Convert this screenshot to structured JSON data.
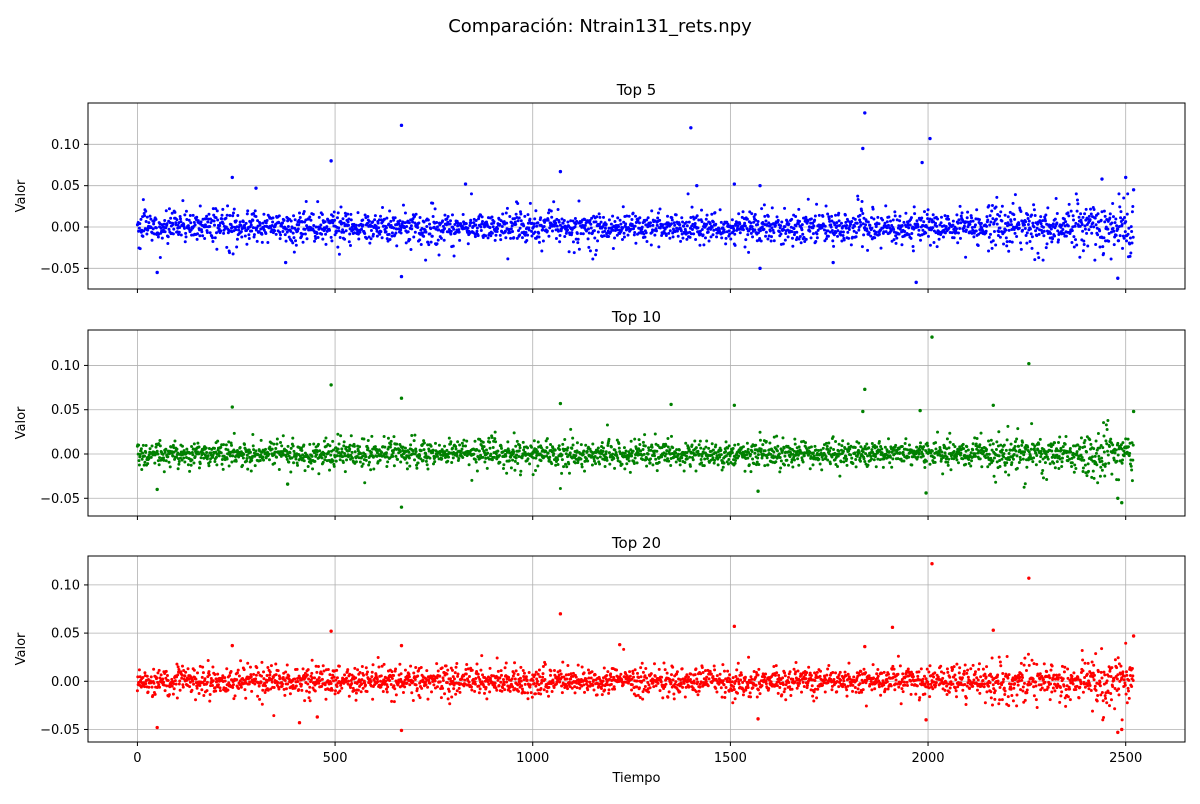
{
  "figure": {
    "suptitle": "Comparación: Ntrain131_rets.npy"
  },
  "chart_data": [
    {
      "type": "scatter",
      "title": "Top 5",
      "ylabel": "Valor",
      "xlabel": "",
      "color": "#0000ff",
      "xlim": [
        -125,
        2650
      ],
      "ylim": [
        -0.075,
        0.15
      ],
      "xticks": [
        0,
        500,
        1000,
        1500,
        2000,
        2500
      ],
      "xtick_labels_visible": false,
      "yticks": [
        -0.05,
        0.0,
        0.05,
        0.1
      ],
      "ytick_labels": [
        "−0.05",
        "0.00",
        "0.05",
        "0.10"
      ],
      "grid": true,
      "n_points": 2520,
      "noise_sigma": 0.011,
      "outliers": [
        {
          "x": 50,
          "y": -0.055
        },
        {
          "x": 240,
          "y": 0.06
        },
        {
          "x": 300,
          "y": 0.047
        },
        {
          "x": 375,
          "y": -0.043
        },
        {
          "x": 490,
          "y": 0.08
        },
        {
          "x": 668,
          "y": 0.123
        },
        {
          "x": 668,
          "y": -0.06
        },
        {
          "x": 830,
          "y": 0.052
        },
        {
          "x": 1070,
          "y": 0.067
        },
        {
          "x": 1400,
          "y": 0.12
        },
        {
          "x": 1415,
          "y": 0.05
        },
        {
          "x": 1510,
          "y": 0.052
        },
        {
          "x": 1575,
          "y": 0.05
        },
        {
          "x": 1575,
          "y": -0.05
        },
        {
          "x": 1760,
          "y": -0.043
        },
        {
          "x": 1835,
          "y": 0.095
        },
        {
          "x": 1840,
          "y": 0.138
        },
        {
          "x": 1970,
          "y": -0.067
        },
        {
          "x": 1985,
          "y": 0.078
        },
        {
          "x": 2005,
          "y": 0.107
        },
        {
          "x": 2440,
          "y": 0.058
        },
        {
          "x": 2480,
          "y": -0.062
        },
        {
          "x": 2500,
          "y": 0.06
        },
        {
          "x": 2520,
          "y": 0.045
        }
      ]
    },
    {
      "type": "scatter",
      "title": "Top 10",
      "ylabel": "Valor",
      "xlabel": "",
      "color": "#008000",
      "xlim": [
        -125,
        2650
      ],
      "ylim": [
        -0.07,
        0.14
      ],
      "xticks": [
        0,
        500,
        1000,
        1500,
        2000,
        2500
      ],
      "xtick_labels_visible": false,
      "yticks": [
        -0.05,
        0.0,
        0.05,
        0.1
      ],
      "ytick_labels": [
        "−0.05",
        "0.00",
        "0.05",
        "0.10"
      ],
      "grid": true,
      "n_points": 2520,
      "noise_sigma": 0.0085,
      "outliers": [
        {
          "x": 50,
          "y": -0.04
        },
        {
          "x": 240,
          "y": 0.053
        },
        {
          "x": 380,
          "y": -0.034
        },
        {
          "x": 490,
          "y": 0.078
        },
        {
          "x": 668,
          "y": 0.063
        },
        {
          "x": 668,
          "y": -0.06
        },
        {
          "x": 1070,
          "y": 0.057
        },
        {
          "x": 1350,
          "y": 0.056
        },
        {
          "x": 1510,
          "y": 0.055
        },
        {
          "x": 1570,
          "y": -0.042
        },
        {
          "x": 1840,
          "y": 0.073
        },
        {
          "x": 1835,
          "y": 0.048
        },
        {
          "x": 1980,
          "y": 0.049
        },
        {
          "x": 1995,
          "y": -0.044
        },
        {
          "x": 2010,
          "y": 0.132
        },
        {
          "x": 2165,
          "y": 0.055
        },
        {
          "x": 2255,
          "y": 0.102
        },
        {
          "x": 2480,
          "y": -0.05
        },
        {
          "x": 2490,
          "y": -0.055
        },
        {
          "x": 2520,
          "y": 0.048
        }
      ]
    },
    {
      "type": "scatter",
      "title": "Top 20",
      "ylabel": "Valor",
      "xlabel": "Tiempo",
      "color": "#ff0000",
      "xlim": [
        -125,
        2650
      ],
      "ylim": [
        -0.063,
        0.13
      ],
      "xticks": [
        0,
        500,
        1000,
        1500,
        2000,
        2500
      ],
      "xtick_labels": [
        "0",
        "500",
        "1000",
        "1500",
        "2000",
        "2500"
      ],
      "xtick_labels_visible": true,
      "yticks": [
        -0.05,
        0.0,
        0.05,
        0.1
      ],
      "ytick_labels": [
        "−0.05",
        "0.00",
        "0.05",
        "0.10"
      ],
      "grid": true,
      "n_points": 2520,
      "noise_sigma": 0.0085,
      "outliers": [
        {
          "x": 50,
          "y": -0.048
        },
        {
          "x": 240,
          "y": 0.037
        },
        {
          "x": 410,
          "y": -0.043
        },
        {
          "x": 455,
          "y": -0.037
        },
        {
          "x": 490,
          "y": 0.052
        },
        {
          "x": 668,
          "y": 0.037
        },
        {
          "x": 668,
          "y": -0.051
        },
        {
          "x": 1070,
          "y": 0.07
        },
        {
          "x": 1220,
          "y": 0.038
        },
        {
          "x": 1510,
          "y": 0.057
        },
        {
          "x": 1570,
          "y": -0.039
        },
        {
          "x": 1840,
          "y": 0.036
        },
        {
          "x": 1910,
          "y": 0.056
        },
        {
          "x": 1995,
          "y": -0.04
        },
        {
          "x": 2010,
          "y": 0.122
        },
        {
          "x": 2165,
          "y": 0.053
        },
        {
          "x": 2255,
          "y": 0.107
        },
        {
          "x": 2480,
          "y": -0.053
        },
        {
          "x": 2490,
          "y": -0.05
        },
        {
          "x": 2520,
          "y": 0.047
        }
      ]
    }
  ]
}
